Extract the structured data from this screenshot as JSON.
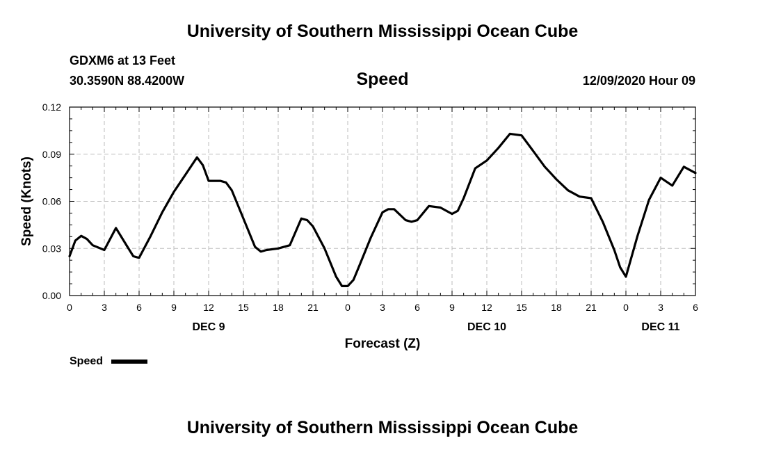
{
  "header": {
    "title": "University of Southern Mississippi Ocean Cube",
    "station": "GDXM6 at 13 Feet",
    "location": "30.3590N 88.4200W",
    "plot_title": "Speed",
    "datetime": "12/09/2020 Hour 09"
  },
  "footer": {
    "title": "University of Southern Mississippi Ocean Cube"
  },
  "legend": {
    "label": "Speed"
  },
  "chart_data": {
    "type": "line",
    "title": "Speed",
    "xlabel": "Forecast (Z)",
    "ylabel": "Speed (Knots)",
    "xlim": [
      0,
      54
    ],
    "ylim": [
      0,
      0.12
    ],
    "x_tick_values": [
      0,
      3,
      6,
      9,
      12,
      15,
      18,
      21,
      24,
      27,
      30,
      33,
      36,
      39,
      42,
      45,
      48,
      51,
      54
    ],
    "x_tick_labels": [
      "0",
      "3",
      "6",
      "9",
      "12",
      "15",
      "18",
      "21",
      "0",
      "3",
      "6",
      "9",
      "12",
      "15",
      "18",
      "21",
      "0",
      "3",
      "6"
    ],
    "y_tick_values": [
      0,
      0.03,
      0.06,
      0.09,
      0.12
    ],
    "y_tick_labels": [
      "0.00",
      "0.03",
      "0.06",
      "0.09",
      "0.12"
    ],
    "day_labels": [
      {
        "label": "DEC 9",
        "x": 12
      },
      {
        "label": "DEC 10",
        "x": 36
      },
      {
        "label": "DEC 11",
        "x": 51
      }
    ],
    "grid": true,
    "series": [
      {
        "name": "Speed",
        "color": "#000000",
        "x": [
          0,
          0.5,
          1,
          1.5,
          2,
          3,
          4,
          5,
          5.5,
          6,
          7,
          8,
          9,
          10,
          11,
          11.5,
          12,
          13,
          13.5,
          14,
          15,
          16,
          16.5,
          17,
          18,
          19,
          20,
          20.5,
          21,
          22,
          23,
          23.5,
          24,
          24.5,
          25,
          26,
          27,
          27.5,
          28,
          29,
          29.5,
          30,
          31,
          32,
          33,
          33.5,
          34,
          35,
          36,
          37,
          38,
          39,
          40,
          41,
          41.5,
          42,
          43,
          44,
          45,
          46,
          47,
          47.5,
          48,
          49,
          50,
          51,
          52,
          53,
          54
        ],
        "values": [
          0.025,
          0.035,
          0.038,
          0.036,
          0.032,
          0.029,
          0.043,
          0.031,
          0.025,
          0.024,
          0.038,
          0.053,
          0.066,
          0.077,
          0.088,
          0.083,
          0.073,
          0.073,
          0.072,
          0.067,
          0.049,
          0.031,
          0.028,
          0.029,
          0.03,
          0.032,
          0.049,
          0.048,
          0.044,
          0.03,
          0.012,
          0.006,
          0.006,
          0.01,
          0.019,
          0.037,
          0.053,
          0.055,
          0.055,
          0.048,
          0.047,
          0.048,
          0.057,
          0.056,
          0.052,
          0.054,
          0.062,
          0.081,
          0.086,
          0.094,
          0.103,
          0.102,
          0.092,
          0.082,
          0.078,
          0.074,
          0.067,
          0.063,
          0.062,
          0.047,
          0.029,
          0.018,
          0.012,
          0.038,
          0.061,
          0.075,
          0.07,
          0.082,
          0.078
        ]
      }
    ]
  }
}
